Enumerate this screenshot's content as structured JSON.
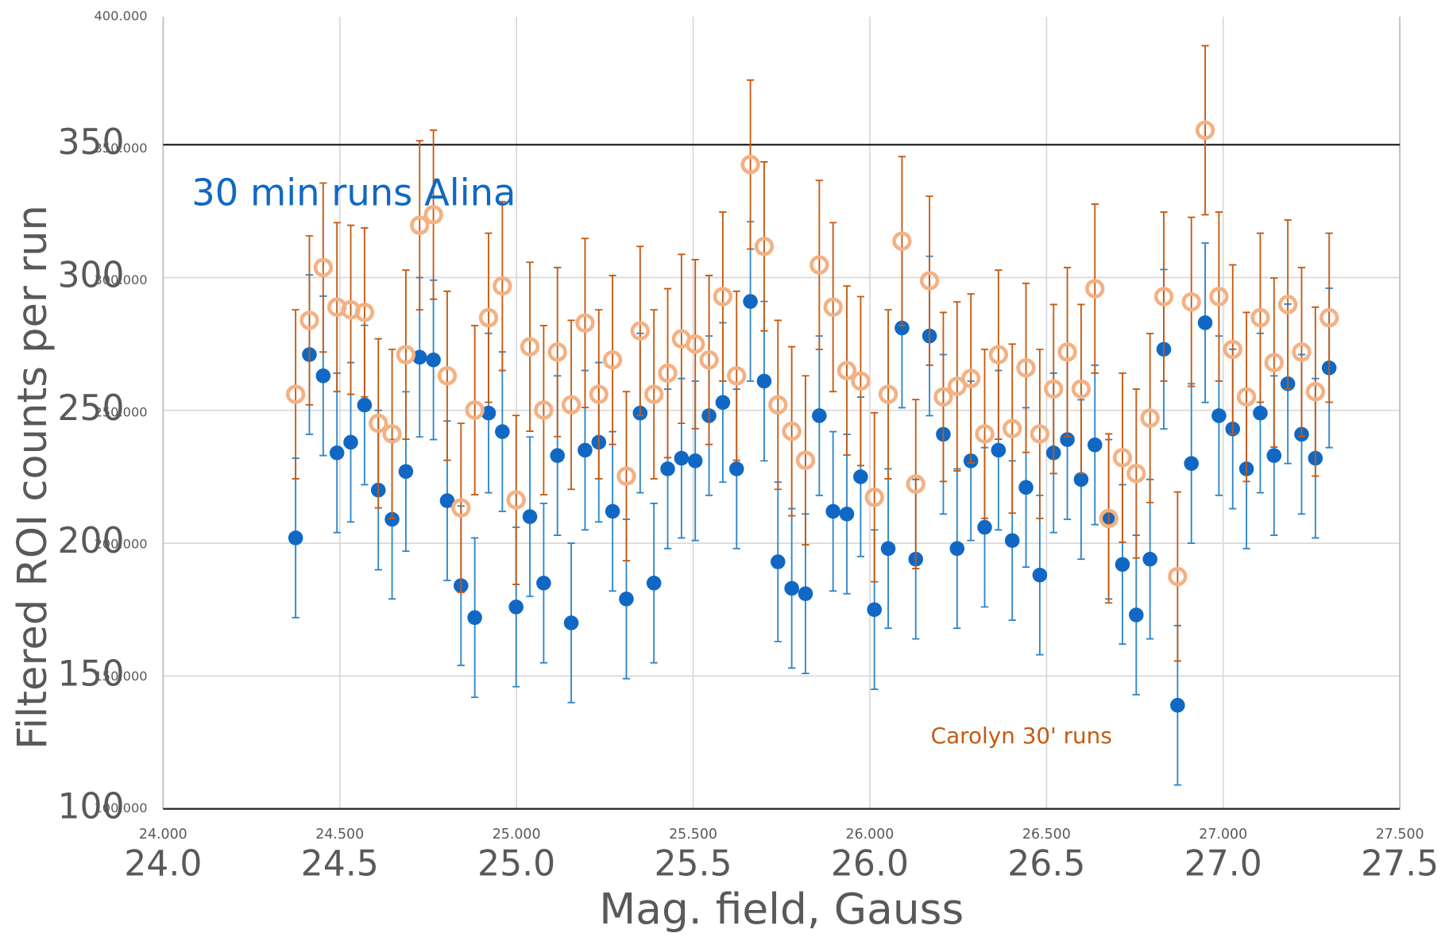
{
  "chart_data": [
    {
      "type": "scatter",
      "x": [
        24.375,
        24.414,
        24.453,
        24.492,
        24.531,
        24.57,
        24.609,
        24.648,
        24.687,
        24.726,
        24.765,
        24.804,
        24.843,
        24.882,
        24.921,
        24.96,
        24.999,
        25.038,
        25.077,
        25.116,
        25.155,
        25.194,
        25.233,
        25.272,
        25.311,
        25.35,
        25.389,
        25.428,
        25.467,
        25.506,
        25.545,
        25.584,
        25.623,
        25.662,
        25.701,
        25.74,
        25.779,
        25.818,
        25.857,
        25.896,
        25.935,
        25.974,
        26.013,
        26.052,
        26.091,
        26.13,
        26.169,
        26.208,
        26.247,
        26.286,
        26.325,
        26.364,
        26.403,
        26.442,
        26.481,
        26.52,
        26.559,
        26.598,
        26.637,
        26.676,
        26.715,
        26.754,
        26.793,
        26.832,
        26.871,
        26.91,
        26.949,
        26.988,
        27.027,
        27.066,
        27.105,
        27.144,
        27.183,
        27.222,
        27.261,
        27.3
      ],
      "series": [
        {
          "name": "Carolyn 30' runs",
          "color": "#f4b183",
          "error_color": "#c55a11",
          "error": 32,
          "values": [
            257,
            285,
            305,
            290,
            289,
            288,
            246,
            242,
            272,
            321,
            325,
            264,
            214,
            251,
            286,
            298,
            217,
            275,
            251,
            273,
            253,
            284,
            257,
            270,
            226,
            281,
            257,
            265,
            278,
            276,
            270,
            294,
            264,
            344,
            313,
            253,
            243,
            232,
            306,
            290,
            266,
            262,
            218,
            257,
            315,
            223,
            300,
            256,
            260,
            263,
            242,
            272,
            244,
            267,
            242,
            259,
            273,
            259,
            297,
            210,
            233,
            227,
            248,
            294,
            188,
            292,
            357,
            294,
            274,
            256,
            286,
            269,
            291,
            273,
            258,
            286
          ]
        }
      ],
      "xlim": [
        24,
        27.5
      ],
      "xticks": [
        {
          "value": 24,
          "label": "24.000"
        },
        {
          "value": 24.5,
          "label": "24.500"
        },
        {
          "value": 25,
          "label": "25.000"
        },
        {
          "value": 25.5,
          "label": "25.500"
        },
        {
          "value": 26,
          "label": "26.000"
        },
        {
          "value": 26.5,
          "label": "26.500"
        },
        {
          "value": 27,
          "label": "27.000"
        },
        {
          "value": 27.5,
          "label": "27.500"
        }
      ],
      "ylim": [
        100,
        400
      ],
      "yticks": [
        {
          "value": 100,
          "label": "100.000"
        },
        {
          "value": 150,
          "label": "150.000"
        },
        {
          "value": 200,
          "label": "200.000"
        },
        {
          "value": 250,
          "label": "250.000"
        },
        {
          "value": 300,
          "label": "300.000"
        },
        {
          "value": 350,
          "label": "350.000"
        },
        {
          "value": 400,
          "label": "400.000"
        }
      ],
      "grid": false
    },
    {
      "type": "scatter",
      "x_label": "Mag. field, Gauss",
      "y_label": "Filtered ROI counts per run",
      "x": [
        24.375,
        24.414,
        24.453,
        24.492,
        24.531,
        24.57,
        24.609,
        24.648,
        24.687,
        24.726,
        24.765,
        24.804,
        24.843,
        24.882,
        24.921,
        24.96,
        24.999,
        25.038,
        25.077,
        25.116,
        25.155,
        25.194,
        25.233,
        25.272,
        25.311,
        25.35,
        25.389,
        25.428,
        25.467,
        25.506,
        25.545,
        25.584,
        25.623,
        25.662,
        25.701,
        25.74,
        25.779,
        25.818,
        25.857,
        25.896,
        25.935,
        25.974,
        26.013,
        26.052,
        26.091,
        26.13,
        26.169,
        26.208,
        26.247,
        26.286,
        26.325,
        26.364,
        26.403,
        26.442,
        26.481,
        26.52,
        26.559,
        26.598,
        26.637,
        26.676,
        26.715,
        26.754,
        26.793,
        26.832,
        26.871,
        26.91,
        26.949,
        26.988,
        27.027,
        27.066,
        27.105,
        27.144,
        27.183,
        27.222,
        27.261,
        27.3
      ],
      "series": [
        {
          "name": "30 min runs Alina",
          "color": "#1068c4",
          "error_color": "#2e86c9",
          "error": 30,
          "values": [
            202,
            271,
            263,
            234,
            238,
            252,
            220,
            209,
            227,
            270,
            269,
            216,
            184,
            172,
            249,
            242,
            176,
            210,
            185,
            233,
            170,
            235,
            238,
            212,
            179,
            249,
            185,
            228,
            232,
            231,
            248,
            253,
            228,
            291,
            261,
            193,
            183,
            181,
            248,
            212,
            211,
            225,
            175,
            198,
            281,
            194,
            278,
            241,
            198,
            231,
            206,
            235,
            201,
            221,
            188,
            234,
            239,
            224,
            237,
            209,
            192,
            173,
            194,
            273,
            139,
            230,
            283,
            248,
            243,
            228,
            249,
            233,
            260,
            241,
            232,
            266
          ]
        }
      ],
      "xlim": [
        24,
        27.5
      ],
      "xticks": [
        {
          "value": 24,
          "label": "24.0"
        },
        {
          "value": 24.5,
          "label": "24.5"
        },
        {
          "value": 25,
          "label": "25.0"
        },
        {
          "value": 25.5,
          "label": "25.5"
        },
        {
          "value": 26,
          "label": "26.0"
        },
        {
          "value": 26.5,
          "label": "26.5"
        },
        {
          "value": 27,
          "label": "27.0"
        },
        {
          "value": 27.5,
          "label": "27.5"
        }
      ],
      "ylim": [
        100,
        350
      ],
      "yticks": [
        100,
        150,
        200,
        250,
        300,
        350
      ],
      "grid": true
    }
  ]
}
